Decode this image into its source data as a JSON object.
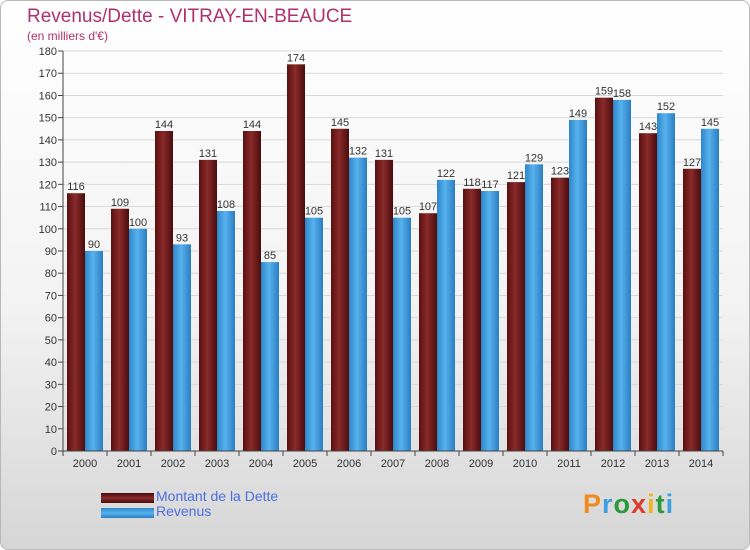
{
  "chart_data": {
    "type": "bar",
    "title": "Revenus/Dette - VITRAY-EN-BEAUCE",
    "subtitle": "(en milliers d'€)",
    "categories": [
      "2000",
      "2001",
      "2002",
      "2003",
      "2004",
      "2005",
      "2006",
      "2007",
      "2008",
      "2009",
      "2010",
      "2011",
      "2012",
      "2013",
      "2014"
    ],
    "series": [
      {
        "name": "Montant de la Dette",
        "color": "#7a1f1f",
        "values": [
          116,
          109,
          144,
          131,
          144,
          174,
          145,
          131,
          107,
          118,
          121,
          123,
          159,
          143,
          127
        ]
      },
      {
        "name": "Revenus",
        "color": "#3d9ee0",
        "values": [
          90,
          100,
          93,
          108,
          85,
          105,
          132,
          105,
          122,
          117,
          129,
          149,
          158,
          152,
          145
        ]
      }
    ],
    "ylim": [
      0,
      180
    ],
    "ytick_step": 10,
    "grid": true,
    "legend_position": "bottom-left"
  },
  "logo": {
    "letters": [
      "P",
      "r",
      "o",
      "x",
      "i",
      "t",
      "i"
    ],
    "colors": [
      "#f08a1c",
      "#3ba0e0",
      "#2a9a3a",
      "#e03b2a",
      "#f0b51c",
      "#2a9a3a",
      "#3ba0e0"
    ]
  }
}
